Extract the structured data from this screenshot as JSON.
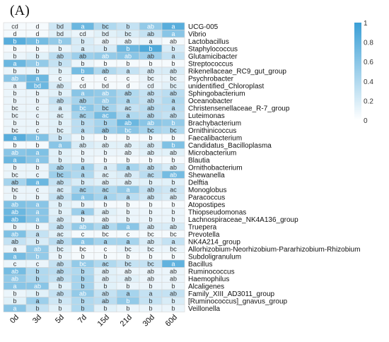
{
  "panel_label": "(A)",
  "chart_data": {
    "type": "heatmap",
    "columns": [
      "0d",
      "3d",
      "5d",
      "7d",
      "15d",
      "21d",
      "30d",
      "60d"
    ],
    "rows": [
      "UCG-005",
      "Vibrio",
      "Lactobacillus",
      "Staphylococcus",
      "Glutamicibacter",
      "Streptococcus",
      "Rikenellaceae_RC9_gut_group",
      "Psychrobacter",
      "unidentified_Chloroplast",
      "Sphingobacterium",
      "Oceanobacter",
      "Christensenellaceae_R-7_group",
      "Luteimonas",
      "Brachybacterium",
      "Ornithinicoccus",
      "Faecalibacterium",
      "Candidatus_Bacilloplasma",
      "Microbacterium",
      "Blautia",
      "Ornithobacterium",
      "Shewanella",
      "Delftia",
      "Monoglobus",
      "Paracoccus",
      "Atopostipes",
      "Thiopseudomonas",
      "Lachnospiraceae_NK4A136_group",
      "Truepera",
      "Prevotella",
      "NK4A214_group",
      "Allorhizobium-Neorhizobium-Pararhizobium-Rhizobium",
      "Subdoligranulum",
      "Bacillus",
      "Ruminococcus",
      "Haemophilus",
      "Alcaligenes",
      "Family_XIII_AD3011_group",
      "[Ruminococcus]_gnavus_group",
      "Veillonella"
    ],
    "labels": [
      [
        "cd",
        "d",
        "bd",
        "a",
        "bc",
        "b",
        "ab",
        "a"
      ],
      [
        "d",
        "d",
        "bd",
        "cd",
        "bd",
        "bc",
        "ab",
        "a"
      ],
      [
        "b",
        "b",
        "b",
        "b",
        "ab",
        "ab",
        "a",
        "ab"
      ],
      [
        "b",
        "b",
        "b",
        "a",
        "b",
        "b",
        "b",
        "b"
      ],
      [
        "b",
        "b",
        "ab",
        "ab",
        "ab",
        "ab",
        "ab",
        "a"
      ],
      [
        "a",
        "b",
        "b",
        "b",
        "b",
        "b",
        "b",
        "b"
      ],
      [
        "b",
        "b",
        "b",
        "b",
        "ab",
        "a",
        "ab",
        "ab"
      ],
      [
        "ab",
        "a",
        "c",
        "c",
        "c",
        "c",
        "bc",
        "bc"
      ],
      [
        "a",
        "bd",
        "ab",
        "cd",
        "bd",
        "d",
        "cd",
        "bc"
      ],
      [
        "b",
        "b",
        "b",
        "a",
        "ab",
        "ab",
        "ab",
        "ab"
      ],
      [
        "b",
        "b",
        "ab",
        "ab",
        "ab",
        "a",
        "ab",
        "a"
      ],
      [
        "bc",
        "c",
        "a",
        "bc",
        "bc",
        "ac",
        "ab",
        "a"
      ],
      [
        "bc",
        "c",
        "ac",
        "ac",
        "ac",
        "a",
        "ab",
        "ab"
      ],
      [
        "b",
        "b",
        "b",
        "b",
        "b",
        "ab",
        "ab",
        "b"
      ],
      [
        "bc",
        "c",
        "bc",
        "a",
        "ab",
        "bc",
        "bc",
        "bc"
      ],
      [
        "a",
        "b",
        "b",
        "b",
        "b",
        "b",
        "b",
        "b"
      ],
      [
        "b",
        "b",
        "a",
        "ab",
        "ab",
        "ab",
        "ab",
        "b"
      ],
      [
        "ab",
        "a",
        "b",
        "b",
        "b",
        "ab",
        "ab",
        "ab"
      ],
      [
        "a",
        "a",
        "b",
        "b",
        "b",
        "b",
        "b",
        "b"
      ],
      [
        "b",
        "b",
        "ab",
        "a",
        "a",
        "a",
        "ab",
        "ab"
      ],
      [
        "bc",
        "c",
        "bc",
        "a",
        "ac",
        "ab",
        "ac",
        "ab"
      ],
      [
        "ab",
        "a",
        "ab",
        "b",
        "ab",
        "ab",
        "b",
        "b"
      ],
      [
        "bc",
        "c",
        "ac",
        "ac",
        "ac",
        "a",
        "ab",
        "ac"
      ],
      [
        "b",
        "b",
        "ab",
        "a",
        "a",
        "a",
        "ab",
        "ab"
      ],
      [
        "ab",
        "a",
        "b",
        "b",
        "b",
        "b",
        "b",
        "b"
      ],
      [
        "ab",
        "a",
        "b",
        "a",
        "ab",
        "b",
        "b",
        "b"
      ],
      [
        "ab",
        "a",
        "ab",
        "b",
        "ab",
        "b",
        "b",
        "b"
      ],
      [
        "b",
        "b",
        "ab",
        "ab",
        "ab",
        "a",
        "ab",
        "ab"
      ],
      [
        "ab",
        "a",
        "ac",
        "c",
        "bc",
        "c",
        "bc",
        "bc"
      ],
      [
        "ab",
        "b",
        "ab",
        "a",
        "a",
        "a",
        "ab",
        "a"
      ],
      [
        "a",
        "ab",
        "bc",
        "bc",
        "c",
        "bc",
        "bc",
        "bc"
      ],
      [
        "a",
        "b",
        "b",
        "b",
        "b",
        "b",
        "b",
        "b"
      ],
      [
        "c",
        "c",
        "ab",
        "bc",
        "ac",
        "bc",
        "bc",
        "a"
      ],
      [
        "ab",
        "b",
        "ab",
        "b",
        "ab",
        "ab",
        "ab",
        "ab"
      ],
      [
        "ab",
        "b",
        "ab",
        "b",
        "ab",
        "ab",
        "ab",
        "ab"
      ],
      [
        "a",
        "ab",
        "b",
        "b",
        "b",
        "b",
        "b",
        "b"
      ],
      [
        "b",
        "b",
        "ab",
        "ab",
        "ab",
        "a",
        "a",
        "ab"
      ],
      [
        "b",
        "a",
        "b",
        "b",
        "ab",
        "b",
        "b",
        "b"
      ],
      [
        "a",
        "b",
        "b",
        "b",
        "b",
        "b",
        "b",
        "b"
      ]
    ],
    "values": [
      [
        0.05,
        0.05,
        0.25,
        0.75,
        0.4,
        0.3,
        0.55,
        0.85
      ],
      [
        0.05,
        0.05,
        0.15,
        0.1,
        0.15,
        0.2,
        0.3,
        0.6
      ],
      [
        0.85,
        0.7,
        0.55,
        0.2,
        0.1,
        0.1,
        0.1,
        0.05
      ],
      [
        0.05,
        0.05,
        0.1,
        0.2,
        0.2,
        0.75,
        0.9,
        0.2
      ],
      [
        0.1,
        0.15,
        0.35,
        0.5,
        0.55,
        0.6,
        0.5,
        0.3
      ],
      [
        0.75,
        0.55,
        0.3,
        0.1,
        0.05,
        0.05,
        0.05,
        0.05
      ],
      [
        0.1,
        0.1,
        0.15,
        0.7,
        0.4,
        0.3,
        0.2,
        0.2
      ],
      [
        0.6,
        0.75,
        0.1,
        0.05,
        0.05,
        0.05,
        0.1,
        0.1
      ],
      [
        0.1,
        0.75,
        0.2,
        0.05,
        0.05,
        0.05,
        0.1,
        0.15
      ],
      [
        0.1,
        0.1,
        0.15,
        0.6,
        0.55,
        0.4,
        0.3,
        0.35
      ],
      [
        0.1,
        0.1,
        0.3,
        0.45,
        0.55,
        0.4,
        0.3,
        0.4
      ],
      [
        0.1,
        0.1,
        0.2,
        0.6,
        0.45,
        0.3,
        0.35,
        0.35
      ],
      [
        0.1,
        0.1,
        0.15,
        0.45,
        0.7,
        0.4,
        0.35,
        0.3
      ],
      [
        0.1,
        0.1,
        0.15,
        0.35,
        0.45,
        0.75,
        0.6,
        0.55
      ],
      [
        0.1,
        0.1,
        0.15,
        0.35,
        0.5,
        0.6,
        0.45,
        0.4
      ],
      [
        0.85,
        0.65,
        0.25,
        0.1,
        0.05,
        0.05,
        0.05,
        0.05
      ],
      [
        0.05,
        0.05,
        0.6,
        0.2,
        0.15,
        0.15,
        0.2,
        0.65
      ],
      [
        0.6,
        0.65,
        0.15,
        0.1,
        0.1,
        0.1,
        0.15,
        0.15
      ],
      [
        0.75,
        0.6,
        0.15,
        0.1,
        0.05,
        0.05,
        0.05,
        0.05
      ],
      [
        0.1,
        0.1,
        0.4,
        0.45,
        0.2,
        0.45,
        0.3,
        0.2
      ],
      [
        0.1,
        0.1,
        0.5,
        0.4,
        0.15,
        0.2,
        0.35,
        0.7
      ],
      [
        0.45,
        0.75,
        0.3,
        0.2,
        0.15,
        0.15,
        0.15,
        0.15
      ],
      [
        0.1,
        0.1,
        0.2,
        0.45,
        0.4,
        0.55,
        0.3,
        0.25
      ],
      [
        0.1,
        0.1,
        0.3,
        0.6,
        0.45,
        0.35,
        0.25,
        0.2
      ],
      [
        0.65,
        0.6,
        0.15,
        0.1,
        0.05,
        0.05,
        0.05,
        0.05
      ],
      [
        0.75,
        0.6,
        0.15,
        0.5,
        0.15,
        0.1,
        0.1,
        0.1
      ],
      [
        0.8,
        0.6,
        0.2,
        0.1,
        0.1,
        0.1,
        0.1,
        0.1
      ],
      [
        0.1,
        0.1,
        0.3,
        0.55,
        0.4,
        0.6,
        0.2,
        0.2
      ],
      [
        0.65,
        0.3,
        0.15,
        0.05,
        0.05,
        0.05,
        0.05,
        0.05
      ],
      [
        0.3,
        0.2,
        0.35,
        0.6,
        0.45,
        0.45,
        0.2,
        0.3
      ],
      [
        0.1,
        0.55,
        0.15,
        0.05,
        0.05,
        0.1,
        0.1,
        0.1
      ],
      [
        0.7,
        0.55,
        0.1,
        0.05,
        0.05,
        0.05,
        0.05,
        0.05
      ],
      [
        0.1,
        0.1,
        0.3,
        0.55,
        0.4,
        0.3,
        0.3,
        0.8
      ],
      [
        0.7,
        0.4,
        0.35,
        0.4,
        0.15,
        0.1,
        0.1,
        0.1
      ],
      [
        0.55,
        0.4,
        0.3,
        0.45,
        0.15,
        0.15,
        0.1,
        0.1
      ],
      [
        0.6,
        0.6,
        0.15,
        0.45,
        0.15,
        0.1,
        0.1,
        0.1
      ],
      [
        0.1,
        0.15,
        0.3,
        0.55,
        0.3,
        0.45,
        0.3,
        0.3
      ],
      [
        0.15,
        0.5,
        0.25,
        0.4,
        0.35,
        0.55,
        0.3,
        0.2
      ],
      [
        0.6,
        0.3,
        0.15,
        0.4,
        0.15,
        0.1,
        0.1,
        0.1
      ]
    ],
    "colorbar": {
      "min": 0,
      "max": 1,
      "ticks": [
        "0",
        "0.2",
        "0.4",
        "0.6",
        "0.8",
        "1"
      ]
    },
    "colors": {
      "low": "#ffffff",
      "high": "#3a9fd6",
      "grid": "#d6d6d6"
    }
  }
}
